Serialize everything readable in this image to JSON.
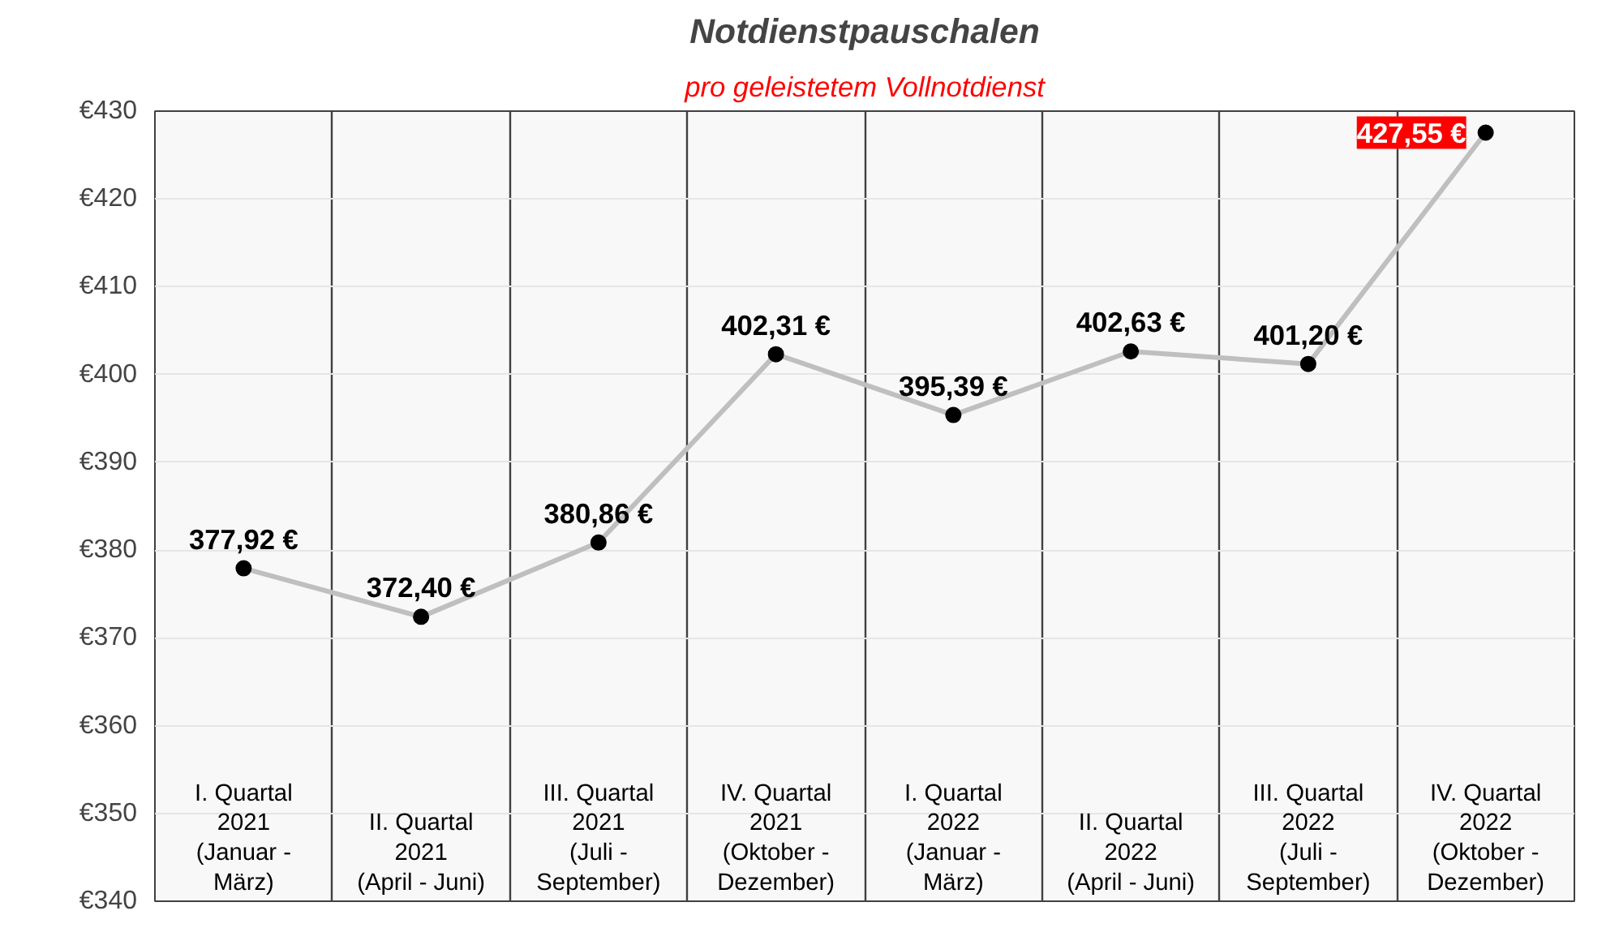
{
  "chart_data": {
    "type": "line",
    "title": "Notdienstpauschalen",
    "subtitle": "pro geleistetem Vollnotdienst",
    "categories": [
      "I. Quartal\n2021\n(Januar -\nMärz)",
      "II. Quartal\n2021\n(April - Juni)",
      "III. Quartal\n2021\n(Juli -\nSeptember)",
      "IV. Quartal\n2021\n(Oktober -\nDezember)",
      "I. Quartal\n2022\n(Januar -\nMärz)",
      "II. Quartal\n2022\n(April - Juni)",
      "III. Quartal\n2022\n(Juli -\nSeptember)",
      "IV. Quartal\n2022\n(Oktober -\nDezember)"
    ],
    "series": [
      {
        "color": "#bfbfbf",
        "values": [
          377.92,
          372.4,
          380.86,
          402.31,
          395.39,
          402.63,
          401.2,
          427.55
        ],
        "value_labels": [
          "377,92 €",
          "372,40 €",
          "380,86 €",
          "402,31 €",
          "395,39 €",
          "402,63 €",
          "401,20 €",
          "427,55 €"
        ]
      }
    ],
    "ylim": [
      340,
      430
    ],
    "yticks": [
      {
        "value": 340,
        "label": "€340"
      },
      {
        "value": 350,
        "label": "€350"
      },
      {
        "value": 360,
        "label": "€360"
      },
      {
        "value": 370,
        "label": "€370"
      },
      {
        "value": 380,
        "label": "€380"
      },
      {
        "value": 390,
        "label": "€390"
      },
      {
        "value": 400,
        "label": "€400"
      },
      {
        "value": 410,
        "label": "€410"
      },
      {
        "value": 420,
        "label": "€420"
      },
      {
        "value": 430,
        "label": "€430"
      }
    ],
    "grid": true,
    "marker": "circle",
    "line_style": "solid"
  }
}
